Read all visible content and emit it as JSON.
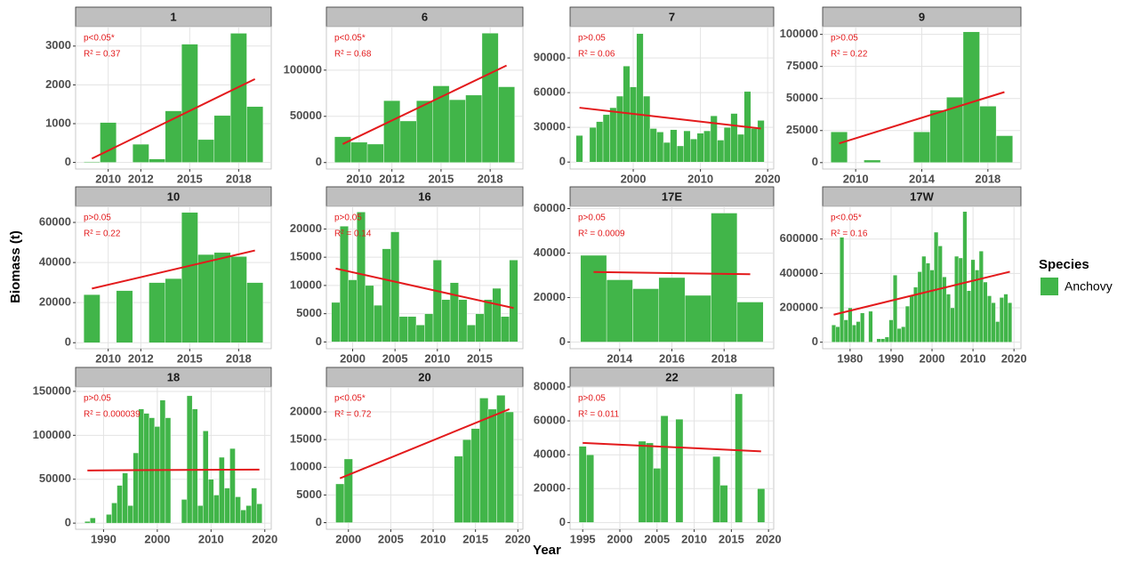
{
  "y_label": "Biomass (t)",
  "x_label": "Year",
  "legend": {
    "title": "Species",
    "entries": [
      "Anchovy"
    ]
  },
  "chart_data": [
    {
      "type": "bar",
      "title": "1",
      "color": "#41b549",
      "trend_color": "#e31a1c",
      "x": [
        2009,
        2010,
        2011,
        2012,
        2013,
        2014,
        2015,
        2016,
        2017,
        2018,
        2019
      ],
      "values": [
        20,
        1030,
        0,
        470,
        90,
        1330,
        3050,
        590,
        1210,
        3330,
        1440
      ],
      "xlim": [
        2008,
        2020
      ],
      "ylim": [
        -170,
        3500
      ],
      "xticks": [
        2010,
        2012,
        2015,
        2018
      ],
      "yticks": [
        0,
        1000,
        2000,
        3000
      ],
      "trend": {
        "x": [
          2009,
          2019
        ],
        "y": [
          100,
          2150
        ]
      },
      "annotations": [
        "p<0.05*",
        "R² = 0.37"
      ]
    },
    {
      "type": "bar",
      "title": "6",
      "color": "#41b549",
      "trend_color": "#e31a1c",
      "x": [
        2009,
        2010,
        2011,
        2012,
        2013,
        2014,
        2015,
        2016,
        2017,
        2018,
        2019
      ],
      "values": [
        28000,
        22000,
        20000,
        67000,
        45000,
        67000,
        83000,
        68000,
        73000,
        140000,
        82000
      ],
      "xlim": [
        2008,
        2020
      ],
      "ylim": [
        -7000,
        147000
      ],
      "xticks": [
        2010,
        2012,
        2015,
        2018
      ],
      "yticks": [
        0,
        50000,
        100000
      ],
      "trend": {
        "x": [
          2009,
          2019
        ],
        "y": [
          20000,
          105000
        ]
      },
      "annotations": [
        "p<0.05*",
        "R² = 0.68"
      ]
    },
    {
      "type": "bar",
      "title": "7",
      "color": "#41b549",
      "trend_color": "#e31a1c",
      "x": [
        1992,
        1993,
        1994,
        1995,
        1996,
        1997,
        1998,
        1999,
        2000,
        2001,
        2002,
        2003,
        2004,
        2005,
        2006,
        2007,
        2008,
        2009,
        2010,
        2011,
        2012,
        2013,
        2014,
        2015,
        2016,
        2017,
        2018,
        2019
      ],
      "values": [
        23000,
        0,
        30000,
        35000,
        41000,
        47000,
        57000,
        83000,
        65000,
        111000,
        57000,
        29000,
        26000,
        17000,
        28000,
        14000,
        27000,
        20000,
        25000,
        27000,
        40000,
        19000,
        30000,
        42000,
        24000,
        61000,
        29000,
        36000
      ],
      "xlim": [
        1990.6,
        2020.9
      ],
      "ylim": [
        -6000,
        117000
      ],
      "xticks": [
        2000,
        2010,
        2020
      ],
      "yticks": [
        0,
        30000,
        60000,
        90000
      ],
      "trend": {
        "x": [
          1992,
          2019
        ],
        "y": [
          47000,
          29000
        ]
      },
      "annotations": [
        "p>0.05",
        "R² = 0.06"
      ]
    },
    {
      "type": "bar",
      "title": "9",
      "color": "#41b549",
      "trend_color": "#e31a1c",
      "x": [
        2009,
        2010,
        2011,
        2012,
        2013,
        2014,
        2015,
        2016,
        2017,
        2018,
        2019
      ],
      "values": [
        24000,
        0,
        2000,
        0,
        0,
        24000,
        41000,
        51000,
        102000,
        44000,
        21000
      ],
      "xlim": [
        2008,
        2020
      ],
      "ylim": [
        -5000,
        106000
      ],
      "xticks": [
        2010,
        2014,
        2018
      ],
      "yticks": [
        0,
        25000,
        50000,
        75000,
        100000
      ],
      "trend": {
        "x": [
          2009,
          2019
        ],
        "y": [
          15000,
          55000
        ]
      },
      "annotations": [
        "p>0.05",
        "R² = 0.22"
      ]
    },
    {
      "type": "bar",
      "title": "10",
      "color": "#41b549",
      "trend_color": "#e31a1c",
      "x": [
        2009,
        2010,
        2011,
        2012,
        2013,
        2014,
        2015,
        2016,
        2017,
        2018,
        2019
      ],
      "values": [
        24000,
        0,
        26000,
        0,
        30000,
        32000,
        65000,
        44000,
        45000,
        43000,
        30000
      ],
      "xlim": [
        2008,
        2020
      ],
      "ylim": [
        -3000,
        68000
      ],
      "xticks": [
        2010,
        2012,
        2015,
        2018
      ],
      "yticks": [
        0,
        20000,
        40000,
        60000
      ],
      "trend": {
        "x": [
          2009,
          2019
        ],
        "y": [
          27000,
          46000
        ]
      },
      "annotations": [
        "p>0.05",
        "R² = 0.22"
      ]
    },
    {
      "type": "bar",
      "title": "16",
      "color": "#41b549",
      "trend_color": "#e31a1c",
      "x": [
        1998,
        1999,
        2000,
        2001,
        2002,
        2003,
        2004,
        2005,
        2006,
        2007,
        2008,
        2009,
        2010,
        2011,
        2012,
        2013,
        2014,
        2015,
        2016,
        2017,
        2018,
        2019
      ],
      "values": [
        7000,
        20500,
        11000,
        23000,
        10000,
        6500,
        16500,
        19500,
        4500,
        4500,
        3000,
        5000,
        14500,
        7500,
        10500,
        7500,
        3000,
        5000,
        7500,
        9500,
        4500,
        14500
      ],
      "xlim": [
        1996.9,
        2020.1
      ],
      "ylim": [
        -1200,
        24000
      ],
      "xticks": [
        2000,
        2005,
        2010,
        2015
      ],
      "yticks": [
        0,
        5000,
        10000,
        15000,
        20000
      ],
      "trend": {
        "x": [
          1998,
          2019
        ],
        "y": [
          13000,
          6000
        ]
      },
      "annotations": [
        "p>0.05",
        "R² = 0.14"
      ]
    },
    {
      "type": "bar",
      "title": "17E",
      "color": "#41b549",
      "trend_color": "#e31a1c",
      "x": [
        2013,
        2014,
        2015,
        2016,
        2017,
        2018,
        2019
      ],
      "values": [
        39000,
        28000,
        24000,
        29000,
        21000,
        58000,
        18000
      ],
      "xlim": [
        2012.1,
        2019.9
      ],
      "ylim": [
        -3000,
        61000
      ],
      "xticks": [
        2014,
        2016,
        2018
      ],
      "yticks": [
        0,
        20000,
        40000,
        60000
      ],
      "trend": {
        "x": [
          2013,
          2019
        ],
        "y": [
          31500,
          30500
        ]
      },
      "annotations": [
        "p>0.05",
        "R² = 0.0009"
      ]
    },
    {
      "type": "bar",
      "title": "17W",
      "color": "#41b549",
      "trend_color": "#e31a1c",
      "x": [
        1976,
        1977,
        1978,
        1979,
        1980,
        1981,
        1982,
        1983,
        1984,
        1985,
        1986,
        1987,
        1988,
        1989,
        1990,
        1991,
        1992,
        1993,
        1994,
        1995,
        1996,
        1997,
        1998,
        1999,
        2000,
        2001,
        2002,
        2003,
        2004,
        2005,
        2006,
        2007,
        2008,
        2009,
        2010,
        2011,
        2012,
        2013,
        2014,
        2015,
        2016,
        2017,
        2018,
        2019
      ],
      "values": [
        100000,
        90000,
        610000,
        130000,
        200000,
        100000,
        120000,
        170000,
        0,
        180000,
        0,
        20000,
        20000,
        30000,
        130000,
        390000,
        80000,
        90000,
        210000,
        270000,
        320000,
        410000,
        500000,
        460000,
        420000,
        640000,
        560000,
        380000,
        280000,
        200000,
        500000,
        490000,
        760000,
        300000,
        480000,
        420000,
        530000,
        350000,
        270000,
        230000,
        120000,
        260000,
        280000,
        230000
      ],
      "xlim": [
        1973.3,
        2021.7
      ],
      "ylim": [
        -38000,
        790000
      ],
      "xticks": [
        1980,
        1990,
        2000,
        2010,
        2020
      ],
      "yticks": [
        0,
        200000,
        400000,
        600000
      ],
      "trend": {
        "x": [
          1976,
          2019
        ],
        "y": [
          160000,
          410000
        ]
      },
      "annotations": [
        "p<0.05*",
        "R² = 0.16"
      ]
    },
    {
      "type": "bar",
      "title": "18",
      "color": "#41b549",
      "trend_color": "#e31a1c",
      "x": [
        1987,
        1988,
        1989,
        1990,
        1991,
        1992,
        1993,
        1994,
        1995,
        1996,
        1997,
        1998,
        1999,
        2000,
        2001,
        2002,
        2003,
        2004,
        2005,
        2006,
        2007,
        2008,
        2009,
        2010,
        2011,
        2012,
        2013,
        2014,
        2015,
        2016,
        2017,
        2018,
        2019
      ],
      "values": [
        2000,
        6000,
        0,
        0,
        10000,
        23000,
        43000,
        57000,
        20000,
        80000,
        130000,
        125000,
        120000,
        110000,
        140000,
        120000,
        0,
        0,
        27000,
        145000,
        130000,
        20000,
        105000,
        50000,
        32000,
        75000,
        40000,
        85000,
        30000,
        15000,
        20000,
        40000,
        22000
      ],
      "xlim": [
        1984.8,
        2021.2
      ],
      "ylim": [
        -7000,
        155000
      ],
      "xticks": [
        1990,
        2000,
        2010,
        2020
      ],
      "yticks": [
        0,
        50000,
        100000,
        150000
      ],
      "trend": {
        "x": [
          1987,
          2019
        ],
        "y": [
          60000,
          61000
        ]
      },
      "annotations": [
        "p>0.05",
        "R² = 0.000039"
      ]
    },
    {
      "type": "bar",
      "title": "20",
      "color": "#41b549",
      "trend_color": "#e31a1c",
      "x": [
        1999,
        2000,
        2001,
        2002,
        2003,
        2004,
        2005,
        2006,
        2007,
        2008,
        2009,
        2010,
        2011,
        2012,
        2013,
        2014,
        2015,
        2016,
        2017,
        2018,
        2019
      ],
      "values": [
        7000,
        11500,
        0,
        0,
        0,
        0,
        0,
        0,
        0,
        0,
        0,
        0,
        0,
        0,
        12000,
        15000,
        17000,
        22500,
        20500,
        23000,
        20000
      ],
      "xlim": [
        1997.4,
        2020.6
      ],
      "ylim": [
        -1200,
        24500
      ],
      "xticks": [
        2000,
        2005,
        2010,
        2015,
        2020
      ],
      "yticks": [
        0,
        5000,
        10000,
        15000,
        20000
      ],
      "trend": {
        "x": [
          1999,
          2019
        ],
        "y": [
          8000,
          20500
        ]
      },
      "annotations": [
        "p<0.05*",
        "R² = 0.72"
      ]
    },
    {
      "type": "bar",
      "title": "22",
      "color": "#41b549",
      "trend_color": "#e31a1c",
      "x": [
        1995,
        1996,
        1997,
        1998,
        1999,
        2000,
        2001,
        2002,
        2003,
        2004,
        2005,
        2006,
        2007,
        2008,
        2009,
        2010,
        2011,
        2012,
        2013,
        2014,
        2015,
        2016,
        2017,
        2018,
        2019
      ],
      "values": [
        45000,
        40000,
        0,
        0,
        0,
        0,
        0,
        0,
        48000,
        47000,
        32000,
        63000,
        0,
        61000,
        0,
        0,
        0,
        0,
        39000,
        22000,
        0,
        76000,
        0,
        0,
        20000
      ],
      "xlim": [
        1993.3,
        2020.7
      ],
      "ylim": [
        -4000,
        80000
      ],
      "xticks": [
        1995,
        2000,
        2005,
        2010,
        2015,
        2020
      ],
      "yticks": [
        0,
        20000,
        40000,
        60000,
        80000
      ],
      "trend": {
        "x": [
          1995,
          2019
        ],
        "y": [
          47000,
          42000
        ]
      },
      "annotations": [
        "p>0.05",
        "R² = 0.011"
      ]
    }
  ]
}
